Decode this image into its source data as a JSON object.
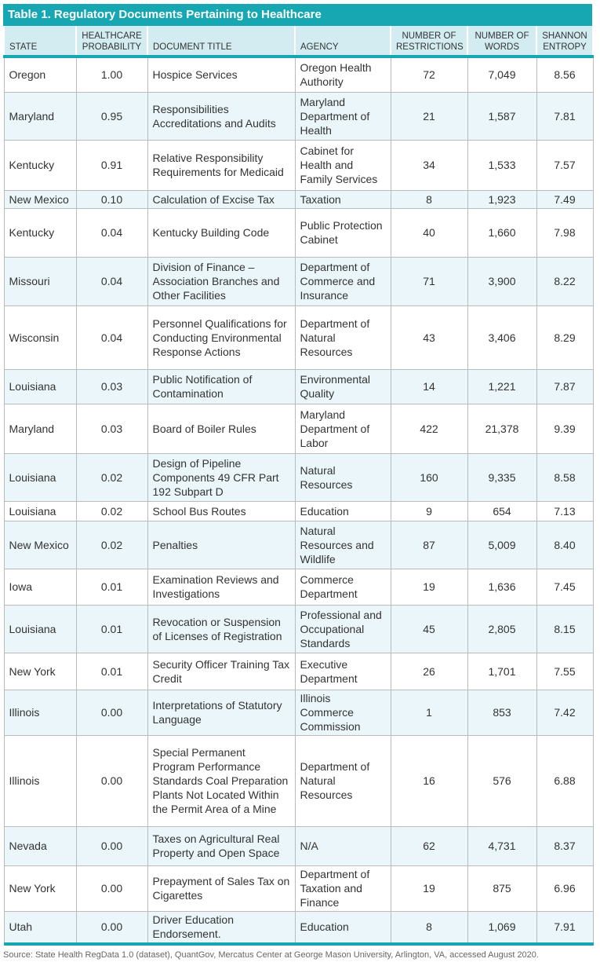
{
  "title": "Table 1. Regulatory Documents Pertaining to Healthcare",
  "columns": [
    "STATE",
    "HEALTHCARE PROBABILITY",
    "DOCUMENT TITLE",
    "AGENCY",
    "NUMBER OF RESTRICTIONS",
    "NUMBER OF WORDS",
    "SHANNON ENTROPY"
  ],
  "rows": [
    [
      "Oregon",
      "1.00",
      "Hospice Services",
      "Oregon Health Authority",
      "72",
      "7,049",
      "8.56"
    ],
    [
      "Maryland",
      "0.95",
      "Responsibilities Accreditations and Audits",
      "Maryland Department of Health",
      "21",
      "1,587",
      "7.81"
    ],
    [
      "Kentucky",
      "0.91",
      "Relative Responsibility Requirements for Medicaid",
      "Cabinet for Health and Family Services",
      "34",
      "1,533",
      "7.57"
    ],
    [
      "New Mexico",
      "0.10",
      "Calculation of Excise Tax",
      "Taxation",
      "8",
      "1,923",
      "7.49"
    ],
    [
      "Kentucky",
      "0.04",
      "Kentucky Building Code",
      "Public Protection Cabinet",
      "40",
      "1,660",
      "7.98"
    ],
    [
      "Missouri",
      "0.04",
      "Division of Finance – Association Branches and Other Facilities",
      "Department of Commerce and Insurance",
      "71",
      "3,900",
      "8.22"
    ],
    [
      "Wisconsin",
      "0.04",
      "Personnel Qualifications for Conducting Environmental Response Actions",
      "Department of Natural Resources",
      "43",
      "3,406",
      "8.29"
    ],
    [
      "Louisiana",
      "0.03",
      "Public Notification of Contamination",
      "Environmental Quality",
      "14",
      "1,221",
      "7.87"
    ],
    [
      "Maryland",
      "0.03",
      "Board of Boiler Rules",
      "Maryland Department of Labor",
      "422",
      "21,378",
      "9.39"
    ],
    [
      "Louisiana",
      "0.02",
      "Design of Pipeline Components 49 CFR Part 192 Subpart D",
      "Natural Resources",
      "160",
      "9,335",
      "8.58"
    ],
    [
      "Louisiana",
      "0.02",
      "School Bus Routes",
      "Education",
      "9",
      "654",
      "7.13"
    ],
    [
      "New Mexico",
      "0.02",
      "Penalties",
      "Natural Resources and Wildlife",
      "87",
      "5,009",
      "8.40"
    ],
    [
      "Iowa",
      "0.01",
      "Examination Reviews and Investigations",
      "Commerce Department",
      "19",
      "1,636",
      "7.45"
    ],
    [
      "Louisiana",
      "0.01",
      "Revocation or Suspension of Licenses of Registration",
      "Professional and Occupational Standards",
      "45",
      "2,805",
      "8.15"
    ],
    [
      "New York",
      "0.01",
      "Security Officer Training Tax Credit",
      "Executive Department",
      "26",
      "1,701",
      "7.55"
    ],
    [
      "Illinois",
      "0.00",
      "Interpretations of Statutory Language",
      "Illinois Commerce Commission",
      "1",
      "853",
      "7.42"
    ],
    [
      "Illinois",
      "0.00",
      "Special Permanent Program Performance Standards Coal Preparation Plants Not Located Within the Permit Area of a Mine",
      "Department of Natural Resources",
      "16",
      "576",
      "6.88"
    ],
    [
      "Nevada",
      "0.00",
      "Taxes on Agricultural Real Property and Open Space",
      "N/A",
      "62",
      "4,731",
      "8.37"
    ],
    [
      "New York",
      "0.00",
      "Prepayment of Sales Tax on Cigarettes",
      "Department of Taxation and Finance",
      "19",
      "875",
      "6.96"
    ],
    [
      "Utah",
      "0.00",
      "Driver Education Endorsement.",
      "Education",
      "8",
      "1,069",
      "7.91"
    ]
  ],
  "source": "Source: State Health RegData 1.0 (dataset), QuantGov, Mercatus Center at George Mason University, Arlington, VA, accessed August 2020.",
  "colors": {
    "accent": "#17a7b3",
    "header_bg": "#d3ecf1",
    "alt_row": "#eaf6f9"
  }
}
